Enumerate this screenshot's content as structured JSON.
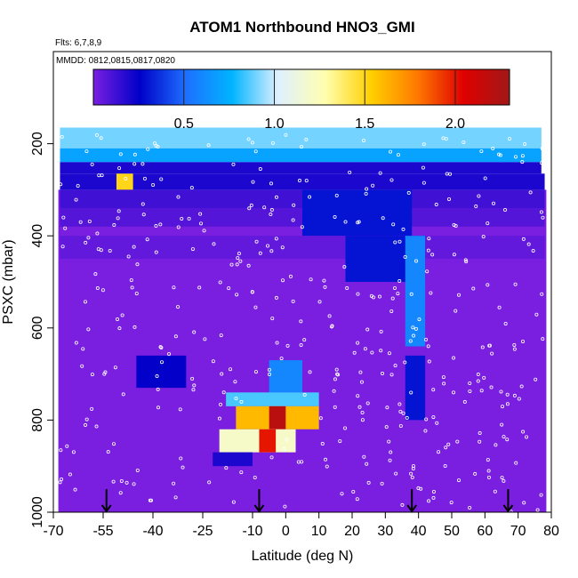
{
  "chart_data": {
    "type": "heatmap",
    "title": "ATOM1 Northbound HNO3_GMI",
    "annotations": [
      "Flts: 6,7,8,9",
      "MMDD: 0812,0815,0817,0820"
    ],
    "xlabel": "Latitude (deg N)",
    "ylabel": "PSXC (mbar)",
    "xlim": [
      -70,
      80
    ],
    "ylim": [
      1000,
      0
    ],
    "x_ticks": [
      -70,
      -55,
      -40,
      -25,
      -10,
      0,
      10,
      20,
      30,
      40,
      50,
      60,
      70,
      80
    ],
    "x_tick_labels": [
      "-70",
      "-55",
      "-40",
      "-25",
      "-10",
      "0",
      "10",
      "20",
      "30",
      "40",
      "50",
      "60",
      "70",
      "80"
    ],
    "y_ticks": [
      200,
      400,
      600,
      800,
      1000
    ],
    "y_tick_labels": [
      "200",
      "400",
      "600",
      "800",
      "1000"
    ],
    "colorbar": {
      "range": [
        0,
        2.3
      ],
      "ticks": [
        0.5,
        1.0,
        1.5,
        2.0
      ],
      "tick_labels": [
        "0.5",
        "1.0",
        "1.5",
        "2.0"
      ],
      "colors": [
        "#7a1fe0",
        "#0000c8",
        "#1e6fff",
        "#00b4ff",
        "#dff0ff",
        "#ffffb0",
        "#ffd000",
        "#ff7a00",
        "#e00000",
        "#a01818"
      ]
    },
    "flight_markers_lat": [
      -54,
      -8,
      38,
      67
    ],
    "cells": [
      {
        "lat": [
          -68,
          77
        ],
        "p": [
          165,
          210
        ],
        "v": 0.9
      },
      {
        "lat": [
          -68,
          77
        ],
        "p": [
          210,
          240
        ],
        "v": 0.7
      },
      {
        "lat": [
          -68,
          77
        ],
        "p": [
          240,
          265
        ],
        "v": 0.2
      },
      {
        "lat": [
          -68,
          78
        ],
        "p": [
          265,
          300
        ],
        "v": 0.2
      },
      {
        "lat": [
          -51,
          -46
        ],
        "p": [
          265,
          300
        ],
        "v": 1.5
      },
      {
        "lat": [
          -68,
          78
        ],
        "p": [
          300,
          340
        ],
        "v": 0.12
      },
      {
        "lat": [
          -68,
          78
        ],
        "p": [
          340,
          380
        ],
        "v": 0.08
      },
      {
        "lat": [
          5,
          38
        ],
        "p": [
          300,
          400
        ],
        "v": 0.3
      },
      {
        "lat": [
          -68,
          78
        ],
        "p": [
          400,
          450
        ],
        "v": 0.05
      },
      {
        "lat": [
          18,
          42
        ],
        "p": [
          400,
          500
        ],
        "v": 0.3
      },
      {
        "lat": [
          36,
          42
        ],
        "p": [
          400,
          640
        ],
        "v": 0.6
      },
      {
        "lat": [
          -45,
          -30
        ],
        "p": [
          660,
          730
        ],
        "v": 0.25
      },
      {
        "lat": [
          -5,
          5
        ],
        "p": [
          670,
          740
        ],
        "v": 0.6
      },
      {
        "lat": [
          -18,
          10
        ],
        "p": [
          740,
          770
        ],
        "v": 0.85
      },
      {
        "lat": [
          -15,
          10
        ],
        "p": [
          770,
          820
        ],
        "v": 1.6
      },
      {
        "lat": [
          -5,
          0
        ],
        "p": [
          770,
          820
        ],
        "v": 2.2
      },
      {
        "lat": [
          -20,
          3
        ],
        "p": [
          820,
          870
        ],
        "v": 1.2
      },
      {
        "lat": [
          -8,
          -3
        ],
        "p": [
          820,
          870
        ],
        "v": 2.0
      },
      {
        "lat": [
          -22,
          -10
        ],
        "p": [
          870,
          900
        ],
        "v": 0.2
      },
      {
        "lat": [
          36,
          42
        ],
        "p": [
          660,
          800
        ],
        "v": 0.3
      }
    ]
  }
}
